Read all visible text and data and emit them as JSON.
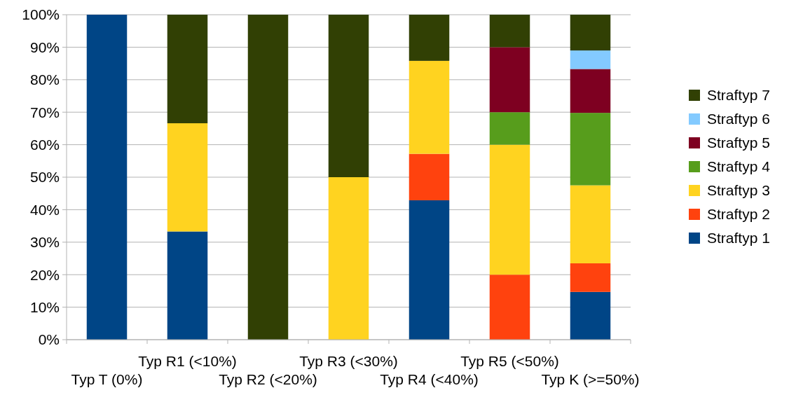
{
  "chart_data": {
    "type": "bar",
    "stacked": true,
    "categories": [
      "Typ T (0%)",
      "Typ R1 (<10%)",
      "Typ R2 (<20%)",
      "Typ R3 (<30%)",
      "Typ R4 (<40%)",
      "Typ R5 (<50%)",
      "Typ K (>=50%)"
    ],
    "series": [
      {
        "name": "Straftyp 1",
        "color": "#004586",
        "values": [
          100,
          33.3,
          0,
          0,
          42.9,
          0,
          14.7
        ]
      },
      {
        "name": "Straftyp 2",
        "color": "#ff420e",
        "values": [
          0,
          0,
          0,
          0,
          14.3,
          20,
          8.8
        ]
      },
      {
        "name": "Straftyp 3",
        "color": "#ffd320",
        "values": [
          0,
          33.3,
          0,
          50,
          28.6,
          40,
          24
        ]
      },
      {
        "name": "Straftyp 4",
        "color": "#579d1c",
        "values": [
          0,
          0,
          0,
          0,
          0,
          10,
          22.3
        ]
      },
      {
        "name": "Straftyp 5",
        "color": "#7e0021",
        "values": [
          0,
          0,
          0,
          0,
          0,
          20,
          13.5
        ]
      },
      {
        "name": "Straftyp 6",
        "color": "#83caff",
        "values": [
          0,
          0,
          0,
          0,
          0,
          0,
          5.7
        ]
      },
      {
        "name": "Straftyp 7",
        "color": "#314004",
        "values": [
          0,
          33.4,
          100,
          50,
          14.2,
          10,
          11
        ]
      }
    ],
    "ylim": [
      0,
      100
    ],
    "yticks": [
      {
        "value": 0,
        "label": "0%"
      },
      {
        "value": 10,
        "label": "10%"
      },
      {
        "value": 20,
        "label": "20%"
      },
      {
        "value": 30,
        "label": "30%"
      },
      {
        "value": 40,
        "label": "40%"
      },
      {
        "value": 50,
        "label": "50%"
      },
      {
        "value": 60,
        "label": "60%"
      },
      {
        "value": 70,
        "label": "70%"
      },
      {
        "value": 80,
        "label": "80%"
      },
      {
        "value": 90,
        "label": "90%"
      },
      {
        "value": 100,
        "label": "100%"
      }
    ],
    "grid": "y",
    "legend": "right"
  }
}
